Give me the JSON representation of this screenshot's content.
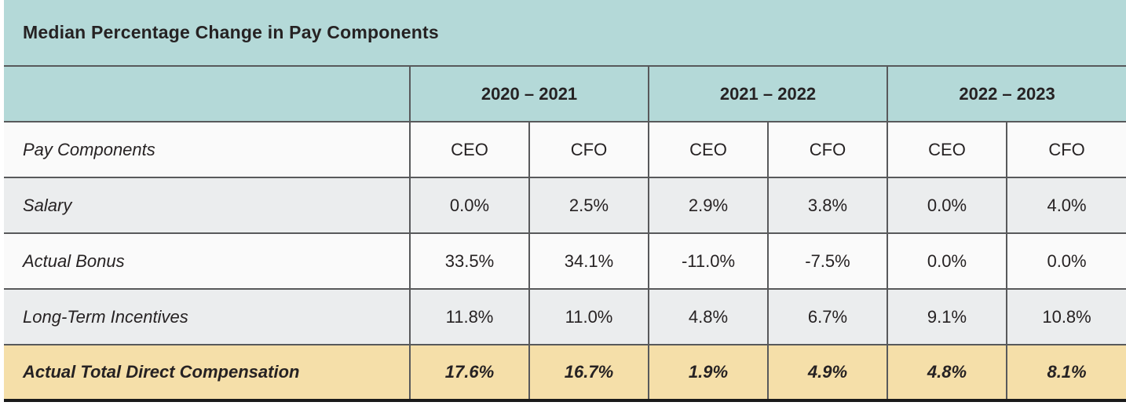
{
  "title": "Median Percentage Change in Pay Components",
  "colors": {
    "header_teal": "#b4d9d8",
    "row_light": "#fafafa",
    "row_gray": "#ebedee",
    "total_row_tan": "#f5dfa9",
    "grid_line": "#58595b",
    "bottom_border": "#1a1a1a",
    "text": "#262223"
  },
  "table": {
    "year_groups": [
      {
        "label": "2020 – 2021"
      },
      {
        "label": "2021 – 2022"
      },
      {
        "label": "2022 – 2023"
      }
    ],
    "sub_header": {
      "row_label": "Pay Components",
      "columns": [
        "CEO",
        "CFO",
        "CEO",
        "CFO",
        "CEO",
        "CFO"
      ]
    },
    "rows": [
      {
        "label": "Salary",
        "values": [
          "0.0%",
          "2.5%",
          "2.9%",
          "3.8%",
          "0.0%",
          "4.0%"
        ]
      },
      {
        "label": "Actual Bonus",
        "values": [
          "33.5%",
          "34.1%",
          "-11.0%",
          "-7.5%",
          "0.0%",
          "0.0%"
        ]
      },
      {
        "label": "Long-Term Incentives",
        "values": [
          "11.8%",
          "11.0%",
          "4.8%",
          "6.7%",
          "9.1%",
          "10.8%"
        ]
      },
      {
        "label": "Actual Total Direct Compensation",
        "values": [
          "17.6%",
          "16.7%",
          "1.9%",
          "4.9%",
          "4.8%",
          "8.1%"
        ]
      }
    ]
  },
  "chart_data": {
    "type": "table",
    "title": "Median Percentage Change in Pay Components",
    "column_groups": [
      "2020 – 2021",
      "2021 – 2022",
      "2022 – 2023"
    ],
    "columns": [
      "Pay Components",
      "2020–2021 CEO",
      "2020–2021 CFO",
      "2021–2022 CEO",
      "2021–2022 CFO",
      "2022–2023 CEO",
      "2022–2023 CFO"
    ],
    "rows": [
      [
        "Salary",
        0.0,
        2.5,
        2.9,
        3.8,
        0.0,
        4.0
      ],
      [
        "Actual Bonus",
        33.5,
        34.1,
        -11.0,
        -7.5,
        0.0,
        0.0
      ],
      [
        "Long-Term Incentives",
        11.8,
        11.0,
        4.8,
        6.7,
        9.1,
        10.8
      ],
      [
        "Actual Total Direct Compensation",
        17.6,
        16.7,
        1.9,
        4.9,
        4.8,
        8.1
      ]
    ],
    "units": "percent"
  }
}
